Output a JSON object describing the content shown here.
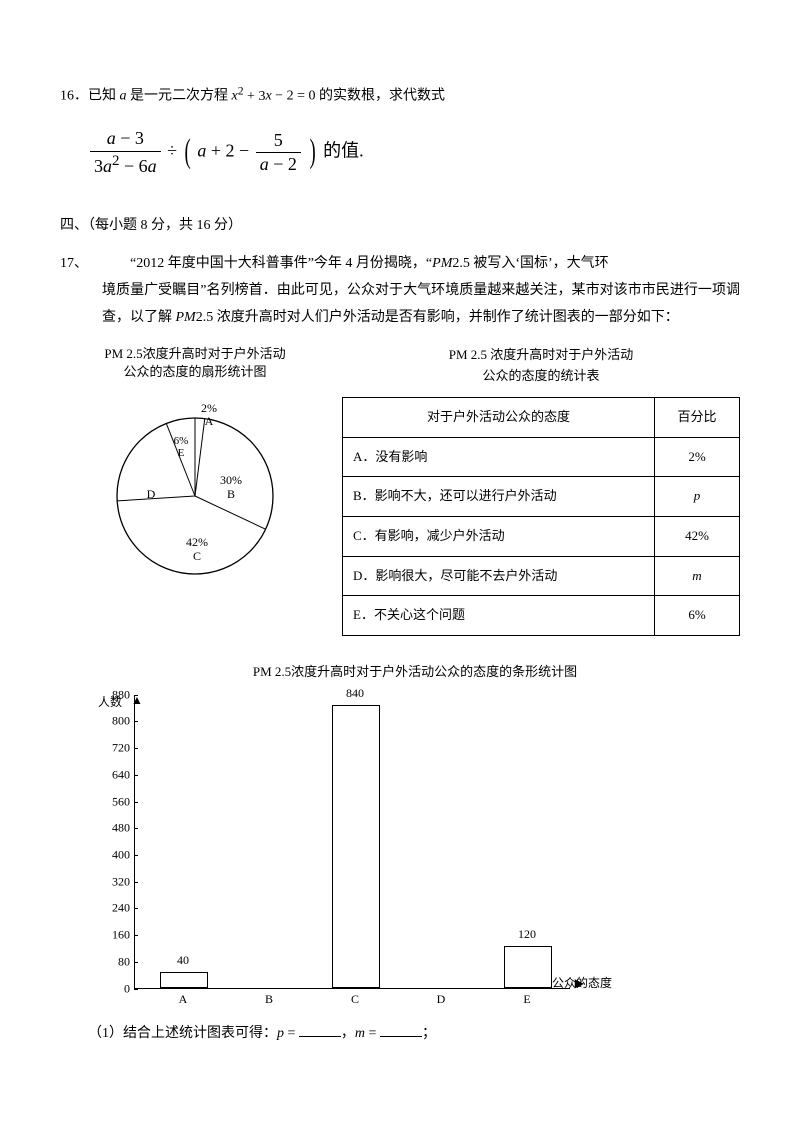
{
  "q16": {
    "prefix": "16．已知",
    "var_a": "a",
    "mid1": "是一元二次方程",
    "eq": "x² + 3x − 2 = 0",
    "mid2": "的实数根，求代数式",
    "frac1_num_l": "a",
    "frac1_num_r": " − 3",
    "frac1_den": "3a² − 6a",
    "div": " ÷ ",
    "inner_a": "a",
    "inner_mid": " + 2 − ",
    "frac2_num": "5",
    "frac2_den_l": "a",
    "frac2_den_r": " − 2",
    "tail": "的值."
  },
  "section4": "四、（每小题 8 分，共 16 分）",
  "q17": {
    "num": "17、",
    "body": "“2012 年度中国十大科普事件”今年 4 月份揭晓，“PM2.5 被写入‘国标’，大气环境质量广受瞩目”名列榜首．由此可见，公众对于大气环境质量越来越关注，某市对该市市民进行一项调查，以了解 PM2.5 浓度升高时对人们户外活动是否有影响，并制作了统计图表的一部分如下："
  },
  "pie": {
    "title1": "PM 2.5浓度升高时对于户外活动",
    "title2": "公众的态度的扇形统计图",
    "slices": [
      {
        "label": "A",
        "pct": "2%",
        "color": "#ffffff"
      },
      {
        "label": "E",
        "pct": "6%",
        "color": "#ffffff"
      },
      {
        "label": "D",
        "pct": "",
        "color": "#ffffff"
      },
      {
        "label": "B",
        "pct": "30%",
        "color": "#ffffff"
      },
      {
        "label": "C",
        "pct": "42%",
        "color": "#ffffff"
      }
    ]
  },
  "table": {
    "title1": "PM 2.5 浓度升高时对于户外活动",
    "title2": "公众的态度的统计表",
    "h1": "对于户外活动公众的态度",
    "h2": "百分比",
    "rows": [
      {
        "label": "A．没有影响",
        "pct": "2%"
      },
      {
        "label": "B．影响不大，还可以进行户外活动",
        "pct": "p"
      },
      {
        "label": "C．有影响，减少户外活动",
        "pct": "42%"
      },
      {
        "label": "D．影响很大，尽可能不去户外活动",
        "pct": "m"
      },
      {
        "label": "E．不关心这个问题",
        "pct": "6%"
      }
    ]
  },
  "bar": {
    "title": "PM 2.5浓度升高时对于户外活动公众的态度的条形统计图",
    "y_axis_label": "人数",
    "x_axis_label": "公众的态度",
    "ymax": 880,
    "ystep": 80,
    "yticks": [
      0,
      80,
      160,
      240,
      320,
      400,
      480,
      560,
      640,
      720,
      800,
      880
    ],
    "bars": [
      {
        "cat": "A",
        "val": 40
      },
      {
        "cat": "B",
        "val": null
      },
      {
        "cat": "C",
        "val": 840
      },
      {
        "cat": "D",
        "val": null
      },
      {
        "cat": "E",
        "val": 120
      }
    ],
    "bar_color": "#ffffff",
    "border_color": "#000000"
  },
  "sub1": {
    "prefix": "（1）结合上述统计图表可得：",
    "p": "p",
    "eq": " = ",
    "m": "m",
    "sep": "，",
    "tail": "；"
  }
}
